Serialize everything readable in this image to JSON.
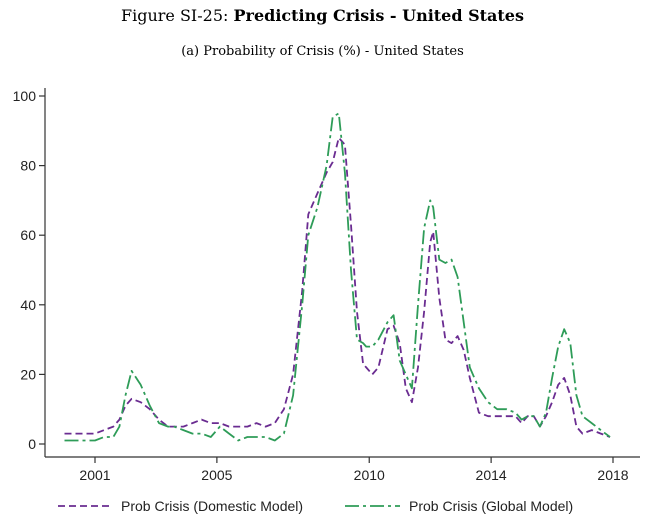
{
  "figure_title_prefix": "Figure SI-25:",
  "figure_title_bold": "Predicting Crisis - United States",
  "chart_data": {
    "type": "line",
    "title": "(a) Probability of Crisis (%) - United States",
    "xlabel": "",
    "ylabel": "",
    "xlim": [
      2000,
      2018.3
    ],
    "ylim": [
      0,
      100
    ],
    "x_ticks": [
      2001,
      2005,
      2010,
      2014,
      2018
    ],
    "y_ticks": [
      0,
      20,
      40,
      60,
      80,
      100
    ],
    "grid": false,
    "legend_position": "bottom",
    "series": [
      {
        "name": "Prob Crisis (Domestic Model)",
        "color": "#6a2c91",
        "dash": "dashed",
        "x": [
          2000.0,
          2000.5,
          2001.0,
          2001.3,
          2001.6,
          2001.8,
          2002.0,
          2002.2,
          2002.5,
          2002.8,
          2003.1,
          2003.4,
          2003.6,
          2003.9,
          2004.2,
          2004.5,
          2004.8,
          2005.1,
          2005.4,
          2005.7,
          2006.0,
          2006.3,
          2006.6,
          2006.9,
          2007.2,
          2007.5,
          2007.8,
          2008.0,
          2008.3,
          2008.6,
          2008.8,
          2009.0,
          2009.2,
          2009.4,
          2009.6,
          2009.8,
          2009.9,
          2010.1,
          2010.3,
          2010.6,
          2010.8,
          2011.0,
          2011.2,
          2011.4,
          2011.6,
          2011.8,
          2012.0,
          2012.1,
          2012.3,
          2012.5,
          2012.7,
          2012.9,
          2013.1,
          2013.3,
          2013.6,
          2013.9,
          2014.2,
          2014.5,
          2014.8,
          2015.0,
          2015.2,
          2015.4,
          2015.6,
          2015.8,
          2016.0,
          2016.2,
          2016.4,
          2016.6,
          2016.8,
          2017.0,
          2017.3,
          2017.6,
          2017.9
        ],
        "values": [
          3,
          3,
          3,
          4,
          5,
          7,
          11,
          13,
          12,
          10,
          7,
          5,
          5,
          5,
          6,
          7,
          6,
          6,
          5,
          5,
          5,
          6,
          5,
          6,
          10,
          20,
          44,
          66,
          72,
          78,
          81,
          88,
          86,
          63,
          38,
          23,
          22,
          20,
          22,
          33,
          34,
          29,
          16,
          12,
          22,
          38,
          58,
          61,
          42,
          30,
          29,
          31,
          27,
          19,
          9,
          8,
          8,
          8,
          8,
          6,
          8,
          8,
          5,
          8,
          12,
          17,
          19,
          14,
          5,
          3,
          4,
          3,
          2
        ]
      },
      {
        "name": "Prob Crisis (Global Model)",
        "color": "#2e9c58",
        "dash": "dashdot",
        "x": [
          2000.0,
          2000.5,
          2001.0,
          2001.3,
          2001.6,
          2001.8,
          2002.0,
          2002.2,
          2002.5,
          2002.8,
          2003.1,
          2003.4,
          2003.6,
          2003.9,
          2004.2,
          2004.5,
          2004.8,
          2005.1,
          2005.4,
          2005.7,
          2006.0,
          2006.3,
          2006.6,
          2006.9,
          2007.2,
          2007.5,
          2007.8,
          2008.0,
          2008.3,
          2008.6,
          2008.8,
          2009.0,
          2009.2,
          2009.4,
          2009.6,
          2009.8,
          2009.9,
          2010.1,
          2010.3,
          2010.6,
          2010.8,
          2011.0,
          2011.2,
          2011.4,
          2011.6,
          2011.8,
          2012.0,
          2012.1,
          2012.3,
          2012.5,
          2012.7,
          2012.9,
          2013.1,
          2013.3,
          2013.6,
          2013.9,
          2014.2,
          2014.5,
          2014.8,
          2015.0,
          2015.2,
          2015.4,
          2015.6,
          2015.8,
          2016.0,
          2016.2,
          2016.4,
          2016.6,
          2016.8,
          2017.0,
          2017.3,
          2017.6,
          2017.9
        ],
        "values": [
          1,
          1,
          1,
          2,
          2,
          5,
          14,
          21,
          17,
          11,
          6,
          5,
          5,
          4,
          3,
          3,
          2,
          5,
          3,
          1,
          2,
          2,
          2,
          1,
          3,
          14,
          40,
          60,
          68,
          80,
          94,
          95,
          78,
          50,
          30,
          29,
          28,
          28,
          30,
          35,
          37,
          24,
          20,
          16,
          40,
          62,
          70,
          68,
          53,
          52,
          53,
          48,
          35,
          22,
          16,
          12,
          10,
          10,
          9,
          7,
          8,
          8,
          5,
          9,
          19,
          28,
          33,
          29,
          14,
          8,
          6,
          4,
          2
        ]
      }
    ]
  }
}
